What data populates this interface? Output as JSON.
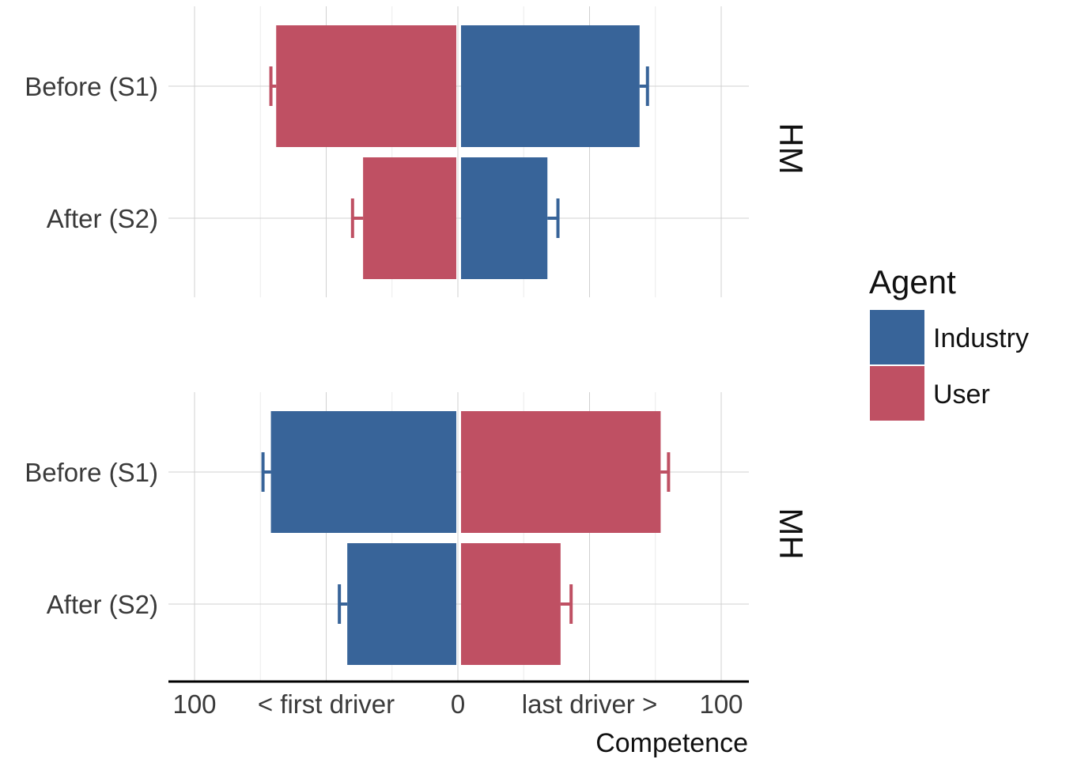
{
  "chart_data": {
    "type": "bar",
    "orientation": "horizontal",
    "layout": "diverging, faceted",
    "xlabel": "Competence",
    "x_tick_labels": [
      "100",
      "< first driver",
      "0",
      "last driver >",
      "100"
    ],
    "xlim": [
      -100,
      100
    ],
    "categories": [
      "Before (S1)",
      "After (S2)"
    ],
    "grid": true,
    "legend": {
      "title": "Agent",
      "position": "right",
      "entries": [
        {
          "label": "Industry",
          "color": "#386499"
        },
        {
          "label": "User",
          "color": "#bf5063"
        }
      ]
    },
    "facets": [
      {
        "label": "HM",
        "bars": [
          {
            "category": "Before (S1)",
            "agent": "User",
            "value": -69,
            "error": 2
          },
          {
            "category": "Before (S1)",
            "agent": "Industry",
            "value": 69,
            "error": 3
          },
          {
            "category": "After (S2)",
            "agent": "User",
            "value": -36,
            "error": 4
          },
          {
            "category": "After (S2)",
            "agent": "Industry",
            "value": 34,
            "error": 4
          }
        ]
      },
      {
        "label": "MH",
        "bars": [
          {
            "category": "Before (S1)",
            "agent": "Industry",
            "value": -71,
            "error": 3
          },
          {
            "category": "Before (S1)",
            "agent": "User",
            "value": 77,
            "error": 3
          },
          {
            "category": "After (S2)",
            "agent": "Industry",
            "value": -42,
            "error": 3
          },
          {
            "category": "After (S2)",
            "agent": "User",
            "value": 39,
            "error": 4
          }
        ]
      }
    ]
  }
}
